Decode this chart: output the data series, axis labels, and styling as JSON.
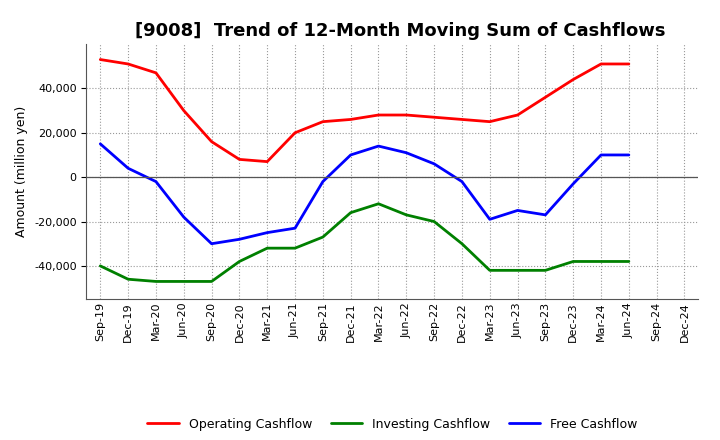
{
  "title": "[9008]  Trend of 12-Month Moving Sum of Cashflows",
  "ylabel": "Amount (million yen)",
  "x_labels": [
    "Sep-19",
    "Dec-19",
    "Mar-20",
    "Jun-20",
    "Sep-20",
    "Dec-20",
    "Mar-21",
    "Jun-21",
    "Sep-21",
    "Dec-21",
    "Mar-22",
    "Jun-22",
    "Sep-22",
    "Dec-22",
    "Mar-23",
    "Jun-23",
    "Sep-23",
    "Dec-23",
    "Mar-24",
    "Jun-24",
    "Sep-24",
    "Dec-24"
  ],
  "operating_cashflow": [
    53000,
    51000,
    47000,
    30000,
    16000,
    8000,
    7000,
    20000,
    25000,
    26000,
    28000,
    28000,
    27000,
    26000,
    25000,
    28000,
    36000,
    44000,
    51000,
    51000,
    null,
    null
  ],
  "investing_cashflow": [
    -40000,
    -46000,
    -47000,
    -47000,
    -47000,
    -38000,
    -32000,
    -32000,
    -27000,
    -16000,
    -12000,
    -17000,
    -20000,
    -30000,
    -42000,
    -42000,
    -42000,
    -38000,
    -38000,
    -38000,
    null,
    null
  ],
  "free_cashflow": [
    15000,
    4000,
    -2000,
    -18000,
    -30000,
    -28000,
    -25000,
    -23000,
    -2000,
    10000,
    14000,
    11000,
    6000,
    -2000,
    -19000,
    -15000,
    -17000,
    -3000,
    10000,
    10000,
    null,
    null
  ],
  "operating_color": "#ff0000",
  "investing_color": "#008000",
  "free_color": "#0000ff",
  "ylim": [
    -55000,
    60000
  ],
  "yticks": [
    -40000,
    -20000,
    0,
    20000,
    40000
  ],
  "background_color": "#ffffff",
  "linewidth": 2.0,
  "title_fontsize": 13,
  "ylabel_fontsize": 9,
  "tick_fontsize": 8
}
